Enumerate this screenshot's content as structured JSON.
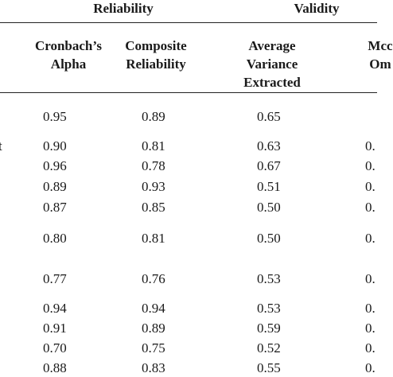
{
  "table": {
    "group_headers": [
      "Reliability",
      "Validity"
    ],
    "column_headers": [
      [
        "Cronbach’s",
        "Alpha"
      ],
      [
        "Composite",
        "Reliability"
      ],
      [
        "Average",
        "Variance",
        "Extracted"
      ],
      [
        "Mcc",
        "Om"
      ]
    ],
    "rows": [
      {
        "cells": [
          "0.95",
          "0.89",
          "0.65"
        ]
      },
      {
        "label": "t",
        "cells": [
          "0.90",
          "0.81",
          "0.63",
          "0."
        ]
      },
      {
        "cells": [
          "0.96",
          "0.78",
          "0.67",
          "0."
        ]
      },
      {
        "cells": [
          "0.89",
          "0.93",
          "0.51",
          "0."
        ]
      },
      {
        "cells": [
          "0.87",
          "0.85",
          "0.50",
          "0."
        ]
      },
      {
        "cells": [
          "0.80",
          "0.81",
          "0.50",
          "0."
        ]
      },
      {
        "cells": [
          "0.77",
          "0.76",
          "0.53",
          "0."
        ]
      },
      {
        "cells": [
          "0.94",
          "0.94",
          "0.53",
          "0."
        ]
      },
      {
        "cells": [
          "0.91",
          "0.89",
          "0.59",
          "0."
        ]
      },
      {
        "cells": [
          "0.70",
          "0.75",
          "0.52",
          "0."
        ]
      },
      {
        "cells": [
          "0.88",
          "0.83",
          "0.55",
          "0."
        ]
      }
    ]
  }
}
